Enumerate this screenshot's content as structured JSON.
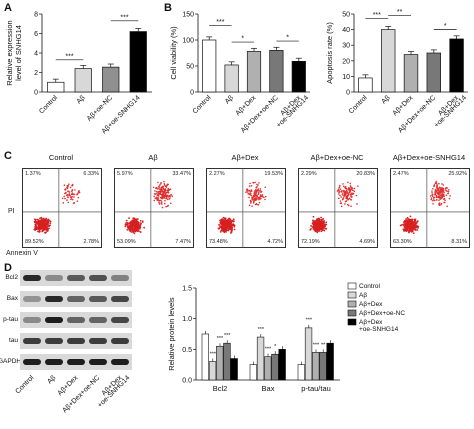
{
  "panel_labels": [
    "A",
    "B",
    "C",
    "D"
  ],
  "groups5": [
    "Control",
    "Aβ",
    "Aβ+Dex",
    "Aβ+Dex+oe-NC",
    "Aβ+Dex\n+oe-SNHG14"
  ],
  "groups4": [
    "Control",
    "Aβ",
    "Aβ+oe-NC",
    "Aβ+oe-SNHG14"
  ],
  "chart_data": [
    {
      "type": "bar",
      "panel": "A",
      "categories": [
        "Control",
        "Aβ",
        "Aβ+oe-NC",
        "Aβ+oe-SNHG14"
      ],
      "values": [
        1.0,
        2.4,
        2.55,
        6.2
      ],
      "ylabel": "Relative expression level of SNHG14",
      "ylim": [
        0,
        8
      ],
      "yticks": [
        0,
        2,
        4,
        6,
        8
      ],
      "significance": [
        "***",
        "***"
      ],
      "colors": [
        "#ffffff",
        "#d8d8d8",
        "#909090",
        "#000000"
      ]
    },
    {
      "type": "bar",
      "panel": "B-left",
      "categories": [
        "Control",
        "Aβ",
        "Aβ+Dex",
        "Aβ+Dex+oe-NC",
        "Aβ+Dex+oe-SNHG14"
      ],
      "values": [
        100,
        52,
        78,
        80,
        59
      ],
      "ylabel": "Cell viability (%)",
      "ylim": [
        0,
        150
      ],
      "yticks": [
        0,
        50,
        100,
        150
      ],
      "significance": [
        "***",
        "*",
        "*"
      ],
      "colors": [
        "#ffffff",
        "#d8d8d8",
        "#b0b0b0",
        "#787878",
        "#000000"
      ]
    },
    {
      "type": "bar",
      "panel": "B-right",
      "categories": [
        "Control",
        "Aβ",
        "Aβ+Dex",
        "Aβ+Dex+oe-NC",
        "Aβ+Dex+oe-SNHG14"
      ],
      "values": [
        9,
        40,
        24,
        25,
        34
      ],
      "ylabel": "Apoptosis rate (%)",
      "ylim": [
        0,
        50
      ],
      "yticks": [
        0,
        10,
        20,
        30,
        40,
        50
      ],
      "significance": [
        "***",
        "**",
        "*"
      ],
      "colors": [
        "#ffffff",
        "#d8d8d8",
        "#b0b0b0",
        "#787878",
        "#000000"
      ]
    },
    {
      "type": "bar",
      "panel": "D-right",
      "categories": [
        "Bcl2",
        "Bax",
        "p-tau/tau"
      ],
      "series": [
        {
          "name": "Control",
          "values": [
            0.75,
            0.25,
            0.25
          ]
        },
        {
          "name": "Aβ",
          "values": [
            0.3,
            0.7,
            0.85
          ]
        },
        {
          "name": "Aβ+Dex",
          "values": [
            0.55,
            0.38,
            0.45
          ]
        },
        {
          "name": "Aβ+Dex+oe-NC",
          "values": [
            0.6,
            0.42,
            0.45
          ]
        },
        {
          "name": "Aβ+Dex+oe-SNHG14",
          "values": [
            0.35,
            0.5,
            0.6
          ]
        }
      ],
      "ylabel": "Relative protein levels",
      "ylim": [
        0,
        1.5
      ],
      "yticks": [
        0.0,
        0.5,
        1.0,
        1.5
      ],
      "yticklabels": [
        "0.0",
        "0.5",
        "1.0",
        "1.5"
      ],
      "significance": [
        [
          "***",
          "***",
          "***"
        ],
        [
          "***",
          "***",
          "*"
        ],
        [
          "***",
          "***",
          "**"
        ]
      ],
      "colors": [
        "#ffffff",
        "#d8d8d8",
        "#b0b0b0",
        "#787878",
        "#000000"
      ]
    }
  ],
  "facs": {
    "ylabel": "PI",
    "xlabel": "Annexin V",
    "plots": [
      {
        "title": "Control",
        "q": [
          "1.37%",
          "6.33%",
          "89.52%",
          "2.78%"
        ]
      },
      {
        "title": "Aβ",
        "q": [
          "5.97%",
          "33.47%",
          "53.09%",
          "7.47%"
        ]
      },
      {
        "title": "Aβ+Dex",
        "q": [
          "2.27%",
          "19.53%",
          "73.48%",
          "4.72%"
        ]
      },
      {
        "title": "Aβ+Dex+oe-NC",
        "q": [
          "2.29%",
          "20.83%",
          "72.19%",
          "4.69%"
        ]
      },
      {
        "title": "Aβ+Dex+oe-SNHG14",
        "q": [
          "2.47%",
          "25.92%",
          "63.30%",
          "8.31%"
        ]
      }
    ]
  },
  "blot": {
    "bands": [
      "Bcl2",
      "Bax",
      "p-tau",
      "tau",
      "GAPDH"
    ]
  }
}
